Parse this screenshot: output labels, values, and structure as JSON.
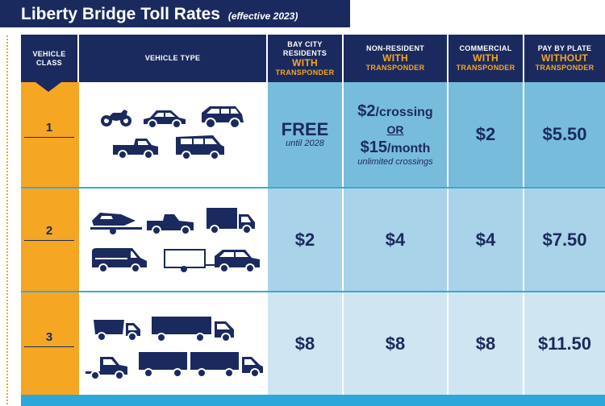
{
  "title": {
    "main": "Liberty Bridge Toll Rates",
    "effective": "(effective 2023)"
  },
  "headers": {
    "vehicle_class": "VEHICLE CLASS",
    "vehicle_type": "VEHICLE TYPE",
    "bay_city": {
      "line1": "BAY CITY RESIDENTS",
      "emph": "WITH",
      "sub": "TRANSPONDER"
    },
    "non_resident": {
      "line1": "NON-RESIDENT",
      "emph": "WITH",
      "sub": "TRANSPONDER"
    },
    "commercial": {
      "line1": "COMMERCIAL",
      "emph": "WITH",
      "sub": "TRANSPONDER"
    },
    "pay_by_plate": {
      "line1": "PAY BY PLATE",
      "emph": "WITHOUT",
      "sub": "TRANSPONDER"
    }
  },
  "rows": [
    {
      "class": "1",
      "vehicles": [
        "motorcycle-icon",
        "sedan-icon",
        "suv-icon",
        "pickup-icon",
        "minivan-icon"
      ],
      "bay_city": {
        "main": "FREE",
        "note": "until 2028"
      },
      "non_resident": {
        "amount1": "$2",
        "unit1": "/crossing",
        "or": "OR",
        "amount2": "$15",
        "unit2": "/month",
        "note": "unlimited crossings"
      },
      "commercial": "$2",
      "pay_by_plate": "$5.50"
    },
    {
      "class": "2",
      "vehicles": [
        "trailer-boat-icon",
        "pickup-icon",
        "box-truck-icon",
        "cargo-van-icon",
        "trailer-icon",
        "suv-icon"
      ],
      "bay_city": "$2",
      "non_resident": "$4",
      "commercial": "$4",
      "pay_by_plate": "$7.50"
    },
    {
      "class": "3",
      "vehicles": [
        "dump-truck-icon",
        "semi-truck-icon",
        "cab-truck-icon",
        "double-trailer-truck-icon"
      ],
      "bay_city": "$8",
      "non_resident": "$8",
      "commercial": "$8",
      "pay_by_plate": "$11.50"
    }
  ],
  "colors": {
    "navy": "#1b2a5e",
    "orange": "#f5a623",
    "row1": "#78bcdb",
    "row2": "#a9d3e8",
    "row3": "#cfe6f2"
  }
}
